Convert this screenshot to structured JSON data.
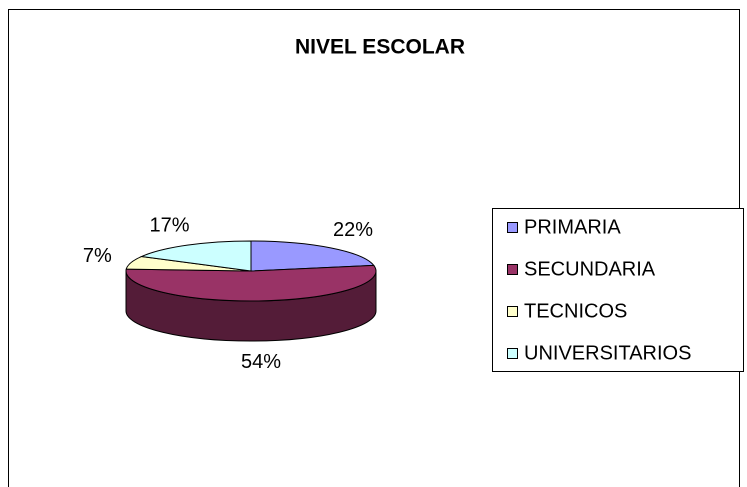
{
  "chart_data": {
    "type": "pie",
    "title": "NIVEL ESCOLAR",
    "categories": [
      "PRIMARIA",
      "SECUNDARIA",
      "TECNICOS",
      "UNIVERSITARIOS"
    ],
    "values": [
      22,
      54,
      7,
      17
    ],
    "value_labels": [
      "22%",
      "54%",
      "7%",
      "17%"
    ],
    "colors": [
      "#9999ff",
      "#993366",
      "#ffffcc",
      "#ccffff"
    ],
    "legend": "right"
  }
}
